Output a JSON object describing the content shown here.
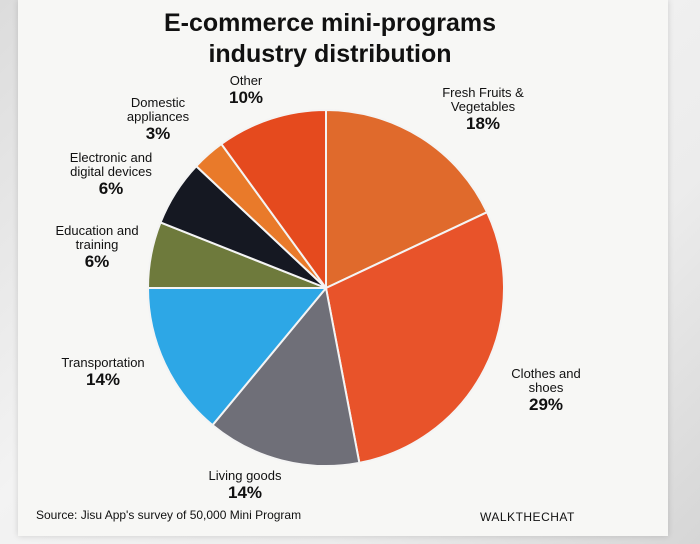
{
  "chart_data": {
    "type": "pie",
    "title": "E-commerce mini-programs industry distribution",
    "slices": [
      {
        "label": "Fresh Fruits & Vegetables",
        "value": 18,
        "pct_text": "18%",
        "color": "#e06a2c"
      },
      {
        "label": "Clothes and shoes",
        "value": 29,
        "pct_text": "29%",
        "color": "#e8532a"
      },
      {
        "label": "Living goods",
        "value": 14,
        "pct_text": "14%",
        "color": "#6f6f78"
      },
      {
        "label": "Transportation",
        "value": 14,
        "pct_text": "14%",
        "color": "#2da7e6"
      },
      {
        "label": "Education and training",
        "value": 6,
        "pct_text": "6%",
        "color": "#6e7a3c"
      },
      {
        "label": "Electronic and digital devices",
        "value": 6,
        "pct_text": "6%",
        "color": "#151822"
      },
      {
        "label": "Domestic appliances",
        "value": 3,
        "pct_text": "3%",
        "color": "#e97a2a"
      },
      {
        "label": "Other",
        "value": 10,
        "pct_text": "10%",
        "color": "#e54a1e"
      }
    ],
    "start_angle_deg": 0,
    "direction": "clockwise",
    "legend": "none"
  },
  "texts": {
    "title_line1": "E-commerce mini-programs",
    "title_line2": "industry distribution",
    "source": "Source: Jisu App's survey of 50,000 Mini Program",
    "brand": "WALKTHECHAT"
  },
  "labels": {
    "fresh": {
      "line1": "Fresh Fruits &",
      "line2": "Vegetables",
      "pct": "18%"
    },
    "clothes": {
      "line1": "Clothes and",
      "line2": "shoes",
      "pct": "29%"
    },
    "living": {
      "line1": "Living goods",
      "pct": "14%"
    },
    "transport": {
      "line1": "Transportation",
      "pct": "14%"
    },
    "education": {
      "line1": "Education and",
      "line2": "training",
      "pct": "6%"
    },
    "electronic": {
      "line1": "Electronic and",
      "line2": "digital devices",
      "pct": "6%"
    },
    "domestic": {
      "line1": "Domestic",
      "line2": "appliances",
      "pct": "3%"
    },
    "other": {
      "line1": "Other",
      "pct": "10%"
    }
  }
}
